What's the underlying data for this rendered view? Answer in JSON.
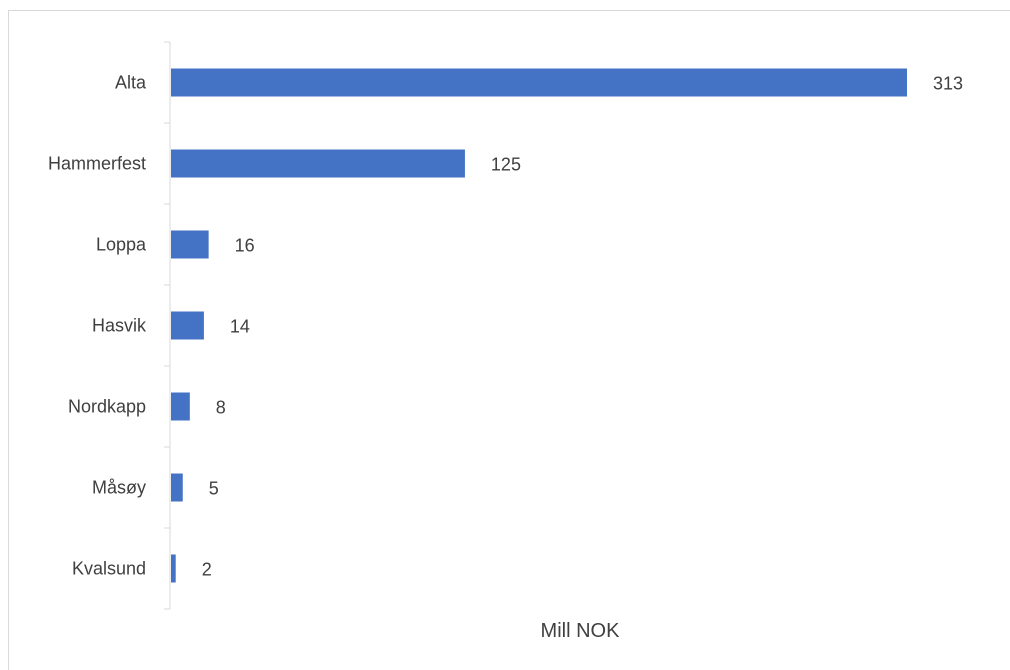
{
  "chart_data": {
    "type": "bar",
    "orientation": "horizontal",
    "categories": [
      "Alta",
      "Hammerfest",
      "Loppa",
      "Hasvik",
      "Nordkapp",
      "Måsøy",
      "Kvalsund"
    ],
    "values": [
      313,
      125,
      16,
      14,
      8,
      5,
      2
    ],
    "value_labels": [
      "313",
      "125",
      "16",
      "14",
      "8",
      "5",
      "2"
    ],
    "title": "",
    "xlabel": "Mill NOK",
    "ylabel": "",
    "xlim": [
      0,
      313
    ],
    "grid": false,
    "legend": "none",
    "bar_color": "#4472c4"
  }
}
